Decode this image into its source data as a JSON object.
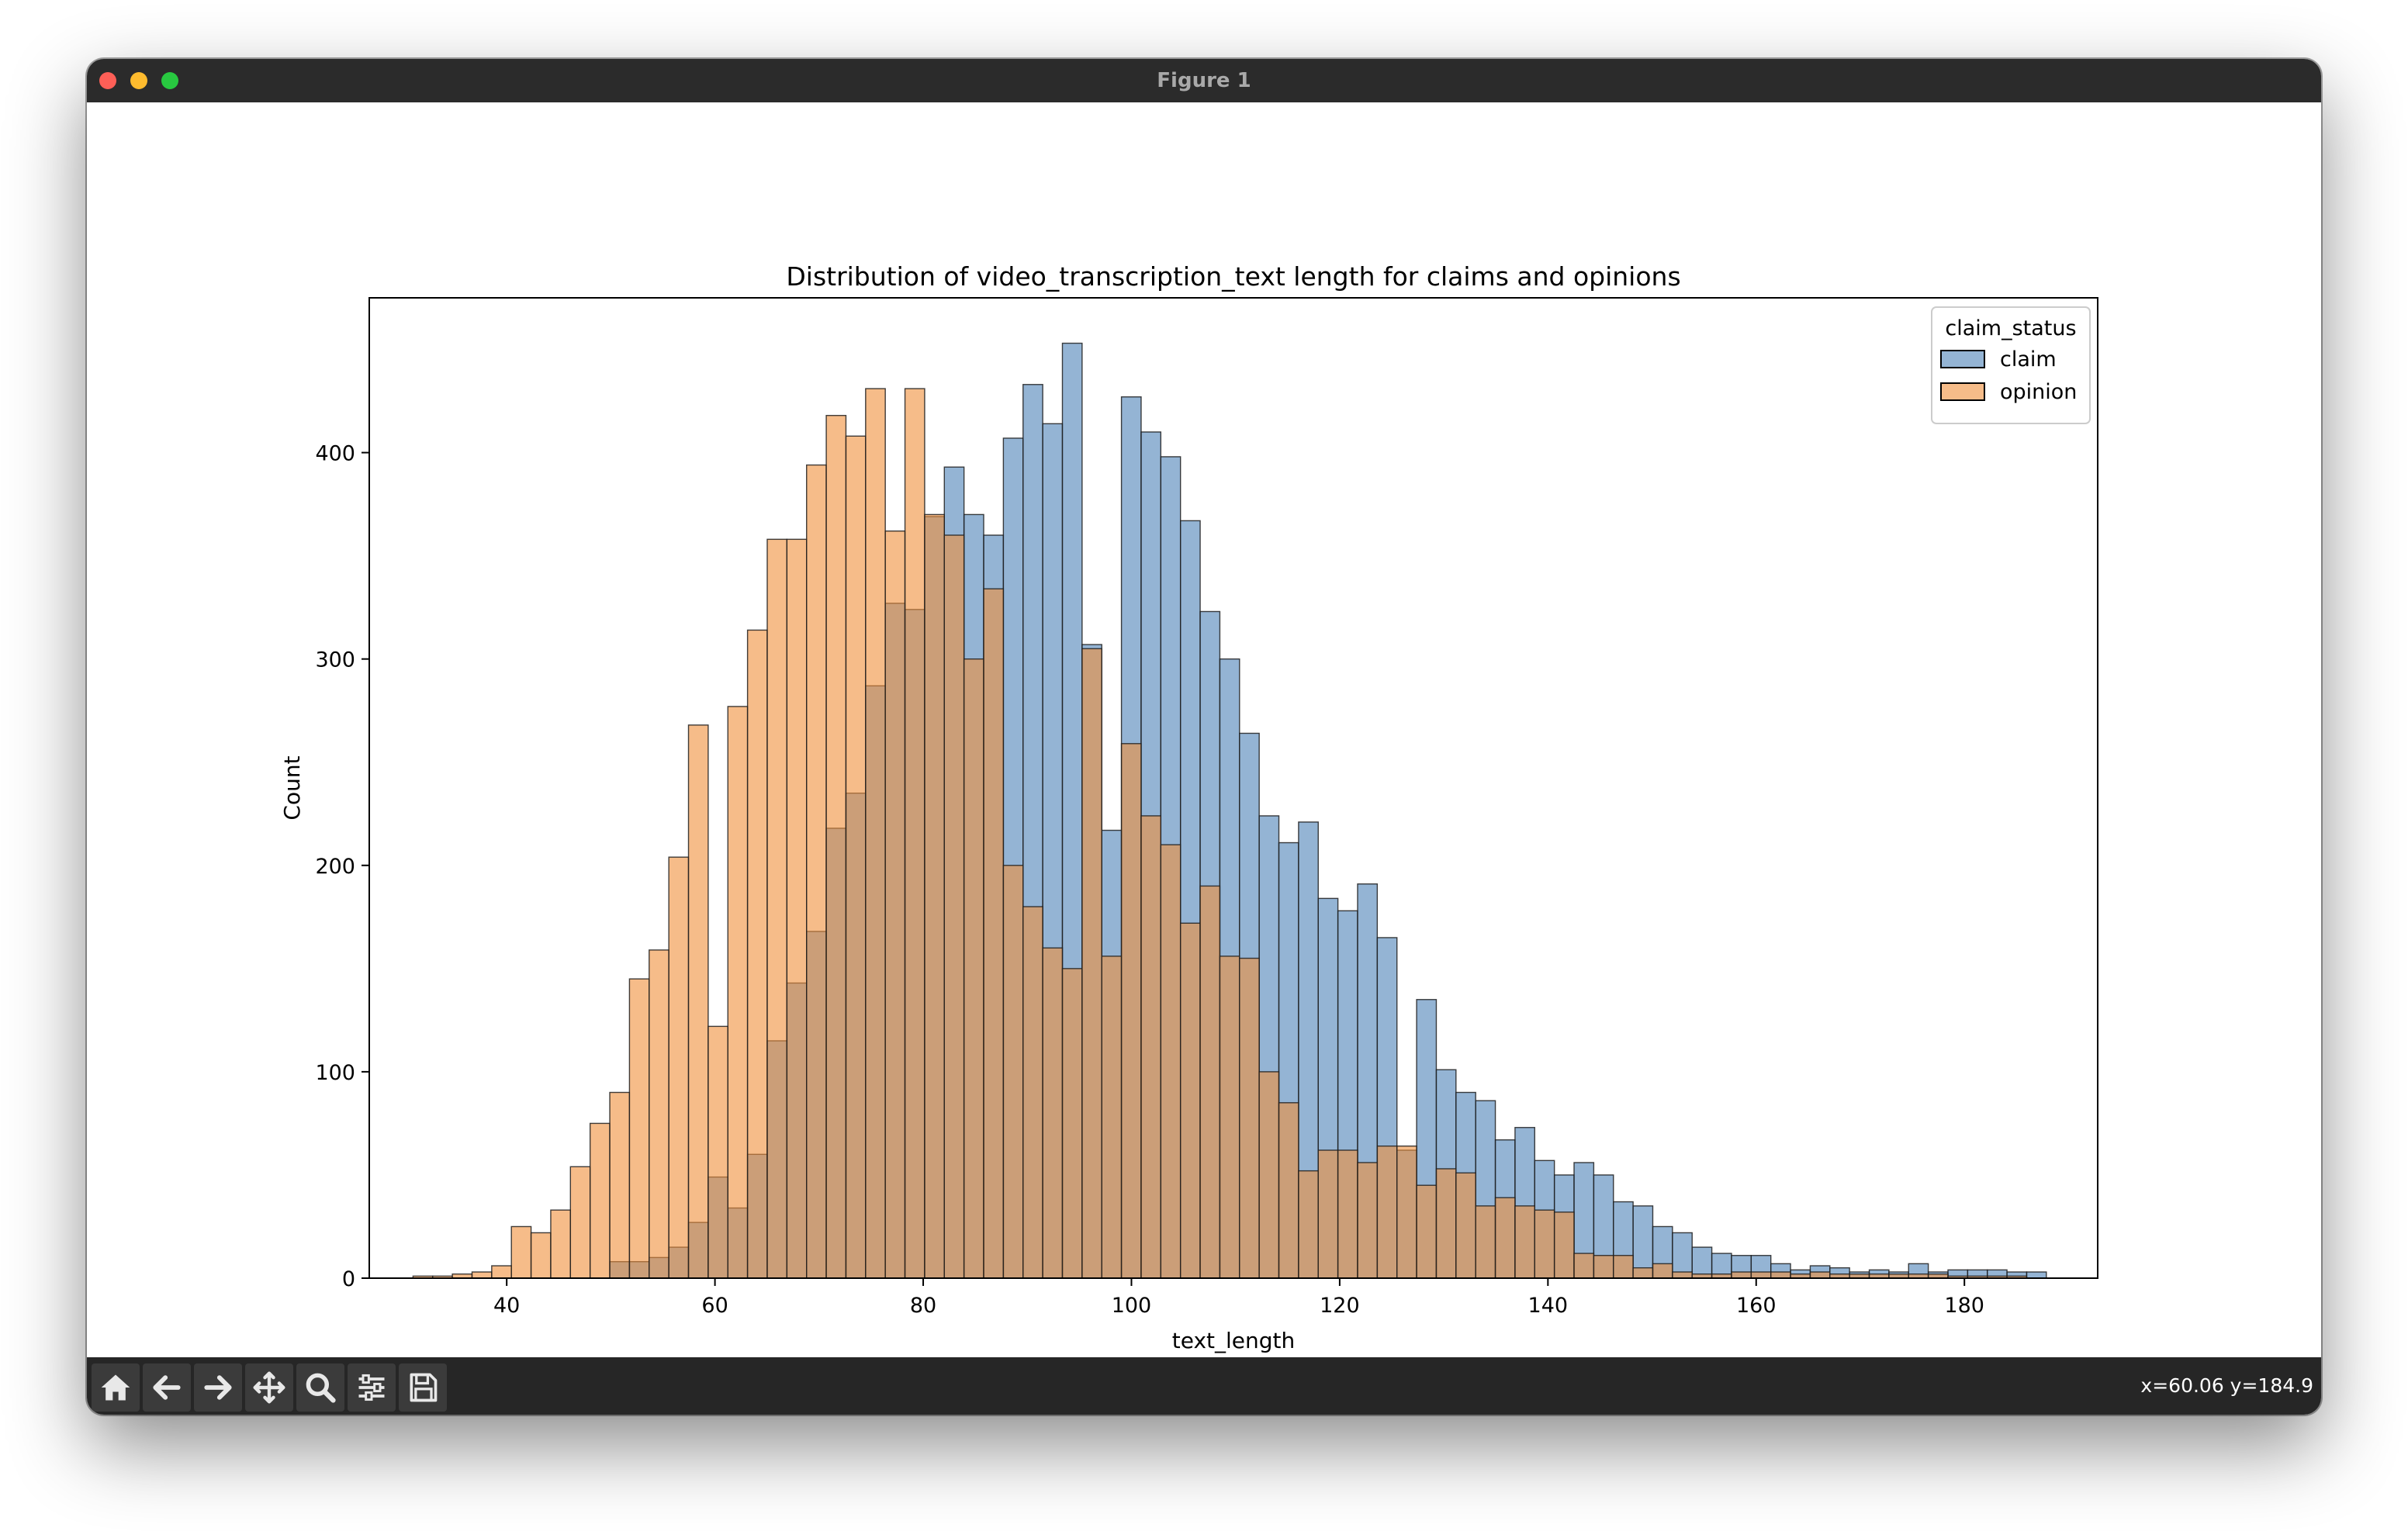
{
  "window": {
    "title": "Figure 1"
  },
  "toolbar": {
    "buttons": [
      {
        "name": "home-button",
        "icon": "home-icon"
      },
      {
        "name": "back-button",
        "icon": "arrow-left-icon"
      },
      {
        "name": "forward-button",
        "icon": "arrow-right-icon"
      },
      {
        "name": "pan-button",
        "icon": "move-icon"
      },
      {
        "name": "zoom-button",
        "icon": "magnifier-icon"
      },
      {
        "name": "configure-subplots-button",
        "icon": "sliders-icon"
      },
      {
        "name": "save-button",
        "icon": "floppy-disk-icon"
      }
    ],
    "coordinates": "x=60.06 y=184.9"
  },
  "chart_data": {
    "type": "bar",
    "title": "Distribution of video_transcription_text length for claims and opinions",
    "xlabel": "text_length",
    "ylabel": "Count",
    "xlim": [
      26.8,
      192.8
    ],
    "ylim": [
      0,
      475
    ],
    "xticks": [
      40,
      60,
      80,
      100,
      120,
      140,
      160,
      180
    ],
    "yticks": [
      0,
      100,
      200,
      300,
      400
    ],
    "bin_start": 31,
    "bin_width": 1.89,
    "legend": {
      "title": "claim_status",
      "position": "top-right"
    },
    "grid": false,
    "series": [
      {
        "name": "claim",
        "color": "#4c82b8",
        "values": [
          0,
          0,
          0,
          0,
          0,
          0,
          0,
          0,
          0,
          0,
          8,
          8,
          10,
          15,
          27,
          49,
          34,
          60,
          115,
          143,
          168,
          218,
          235,
          287,
          327,
          324,
          369,
          393,
          370,
          360,
          407,
          433,
          414,
          453,
          307,
          217,
          427,
          410,
          398,
          367,
          323,
          300,
          264,
          224,
          211,
          221,
          184,
          178,
          191,
          165,
          62,
          135,
          101,
          90,
          86,
          67,
          73,
          57,
          50,
          56,
          50,
          37,
          35,
          25,
          22,
          15,
          12,
          11,
          11,
          7,
          4,
          6,
          5,
          3,
          4,
          3,
          7,
          3,
          4,
          4,
          4,
          3,
          3
        ]
      },
      {
        "name": "opinion",
        "color": "#f0903a",
        "values": [
          1,
          1,
          2,
          3,
          6,
          25,
          22,
          33,
          54,
          75,
          90,
          145,
          159,
          204,
          268,
          122,
          277,
          314,
          358,
          358,
          394,
          418,
          408,
          431,
          362,
          431,
          370,
          360,
          300,
          334,
          200,
          180,
          160,
          150,
          305,
          156,
          259,
          224,
          210,
          172,
          190,
          156,
          155,
          100,
          85,
          52,
          62,
          62,
          56,
          64,
          64,
          45,
          53,
          51,
          35,
          39,
          35,
          33,
          32,
          12,
          11,
          11,
          5,
          7,
          3,
          2,
          2,
          3,
          3,
          3,
          2,
          3,
          2,
          2,
          2,
          2,
          2,
          2,
          1,
          1,
          1,
          1,
          0
        ]
      }
    ]
  }
}
